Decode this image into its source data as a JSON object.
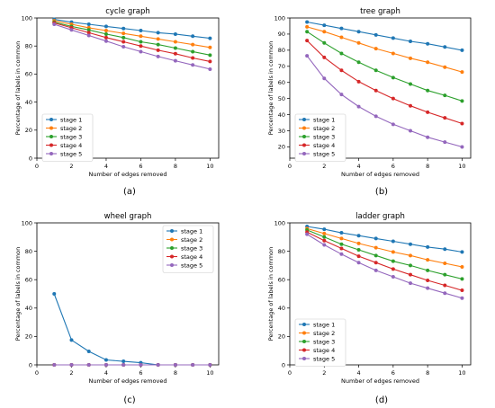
{
  "colors": {
    "s1": "#1f77b4",
    "s2": "#ff7f0e",
    "s3": "#2ca02c",
    "s4": "#d62728",
    "s5": "#9467bd"
  },
  "chart_data": [
    {
      "type": "line",
      "title": "cycle graph",
      "caption": "(a)",
      "xlabel": "Number of edges removed",
      "ylabel": "Percentage of labels in common",
      "xlim": [
        0,
        10.5
      ],
      "ylim": [
        0,
        100
      ],
      "xticks": [
        0,
        2,
        4,
        6,
        8,
        10
      ],
      "yticks": [
        0,
        20,
        40,
        60,
        80,
        100
      ],
      "legend": "lower-left",
      "x": [
        1,
        2,
        3,
        4,
        5,
        6,
        7,
        8,
        9,
        10
      ],
      "series": [
        {
          "name": "stage 1",
          "color": "#1f77b4",
          "values": [
            99,
            97,
            95.5,
            94,
            92.5,
            91,
            89.5,
            88.5,
            87,
            85.5
          ]
        },
        {
          "name": "stage 2",
          "color": "#ff7f0e",
          "values": [
            98,
            95.5,
            93,
            91,
            89,
            87,
            85,
            83,
            81,
            79
          ]
        },
        {
          "name": "stage 3",
          "color": "#2ca02c",
          "values": [
            97,
            94,
            91.5,
            88.5,
            86,
            83,
            81,
            78.5,
            76,
            73.5
          ]
        },
        {
          "name": "stage 4",
          "color": "#d62728",
          "values": [
            96.5,
            93,
            89.5,
            86,
            83,
            80,
            77,
            74.5,
            71.5,
            69
          ]
        },
        {
          "name": "stage 5",
          "color": "#9467bd",
          "values": [
            95.5,
            91.5,
            87.5,
            83.5,
            79.5,
            76,
            72.5,
            69.5,
            66.5,
            63.5
          ]
        }
      ]
    },
    {
      "type": "line",
      "title": "tree graph",
      "caption": "(b)",
      "xlabel": "Number of edges removed",
      "ylabel": "Percentage of labels in common",
      "xlim": [
        0,
        10.5
      ],
      "ylim": [
        13,
        100
      ],
      "xticks": [
        0,
        2,
        4,
        6,
        8,
        10
      ],
      "yticks": [
        20,
        30,
        40,
        50,
        60,
        70,
        80,
        90,
        100
      ],
      "legend": "lower-left",
      "x": [
        1,
        2,
        3,
        4,
        5,
        6,
        7,
        8,
        9,
        10
      ],
      "series": [
        {
          "name": "stage 1",
          "color": "#1f77b4",
          "values": [
            97.5,
            95.5,
            93.5,
            91.5,
            89.5,
            87.5,
            85.5,
            84,
            82,
            80
          ]
        },
        {
          "name": "stage 2",
          "color": "#ff7f0e",
          "values": [
            94.5,
            91.5,
            88,
            84.5,
            81,
            78,
            75,
            72.5,
            69.5,
            66.5
          ]
        },
        {
          "name": "stage 3",
          "color": "#2ca02c",
          "values": [
            91.5,
            84.5,
            78,
            72.5,
            67.5,
            63,
            59,
            55,
            52,
            48.5
          ]
        },
        {
          "name": "stage 4",
          "color": "#d62728",
          "values": [
            86,
            75.5,
            67.5,
            60.5,
            55,
            50,
            45.5,
            41.5,
            38,
            34.5
          ]
        },
        {
          "name": "stage 5",
          "color": "#9467bd",
          "values": [
            76.5,
            62.5,
            52.5,
            45,
            39,
            34,
            30,
            26,
            23,
            20
          ]
        }
      ]
    },
    {
      "type": "line",
      "title": "wheel graph",
      "caption": "(c)",
      "xlabel": "Number of edges removed",
      "ylabel": "Percentage of labels in common",
      "xlim": [
        0,
        10.5
      ],
      "ylim": [
        0,
        100
      ],
      "xticks": [
        0,
        2,
        4,
        6,
        8,
        10
      ],
      "yticks": [
        0,
        20,
        40,
        60,
        80,
        100
      ],
      "legend": "upper-right",
      "x": [
        1,
        2,
        3,
        4,
        5,
        6,
        7,
        8,
        9,
        10
      ],
      "series": [
        {
          "name": "stage 1",
          "color": "#1f77b4",
          "values": [
            50,
            17.5,
            9.5,
            3.5,
            2.5,
            1.5,
            0,
            0,
            0,
            0
          ]
        },
        {
          "name": "stage 2",
          "color": "#ff7f0e",
          "values": [
            0,
            0,
            0,
            0,
            0,
            0,
            0,
            0,
            0,
            0
          ]
        },
        {
          "name": "stage 3",
          "color": "#2ca02c",
          "values": [
            0,
            0,
            0,
            0,
            0,
            0,
            0,
            0,
            0,
            0
          ]
        },
        {
          "name": "stage 4",
          "color": "#d62728",
          "values": [
            0,
            0,
            0,
            0,
            0,
            0,
            0,
            0,
            0,
            0
          ]
        },
        {
          "name": "stage 5",
          "color": "#9467bd",
          "values": [
            0,
            0,
            0,
            0,
            0,
            0,
            0,
            0,
            0,
            0
          ]
        }
      ]
    },
    {
      "type": "line",
      "title": "ladder graph",
      "caption": "(d)",
      "xlabel": "Number of edges removed",
      "ylabel": "Percentage of labels in common",
      "xlim": [
        0,
        10.5
      ],
      "ylim": [
        0,
        100
      ],
      "xticks": [
        0,
        2,
        4,
        6,
        8,
        10
      ],
      "yticks": [
        0,
        20,
        40,
        60,
        80,
        100
      ],
      "legend": "lower-left",
      "x": [
        1,
        2,
        3,
        4,
        5,
        6,
        7,
        8,
        9,
        10
      ],
      "series": [
        {
          "name": "stage 1",
          "color": "#1f77b4",
          "values": [
            97.5,
            95.5,
            93,
            91,
            89,
            87,
            85,
            83,
            81.5,
            79.5
          ]
        },
        {
          "name": "stage 2",
          "color": "#ff7f0e",
          "values": [
            96,
            92.5,
            89,
            85.5,
            82.5,
            79.5,
            77,
            74,
            71.5,
            69
          ]
        },
        {
          "name": "stage 3",
          "color": "#2ca02c",
          "values": [
            95,
            90,
            85,
            81,
            77,
            73,
            70,
            66.5,
            63.5,
            60.5
          ]
        },
        {
          "name": "stage 4",
          "color": "#d62728",
          "values": [
            93.5,
            87.5,
            82,
            76.5,
            72,
            67.5,
            63.5,
            59.5,
            56,
            52.5
          ]
        },
        {
          "name": "stage 5",
          "color": "#9467bd",
          "values": [
            92,
            84.5,
            78,
            72,
            66.5,
            62,
            57.5,
            54,
            50.5,
            47
          ]
        }
      ]
    }
  ]
}
